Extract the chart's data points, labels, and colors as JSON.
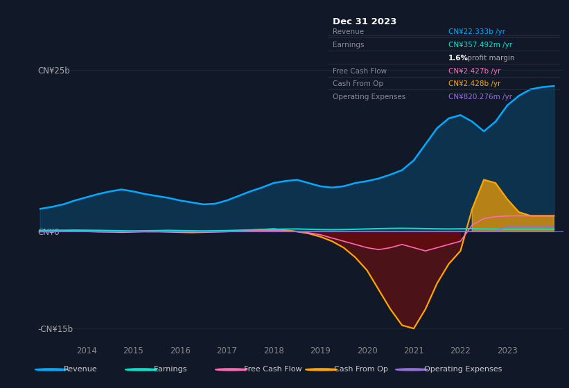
{
  "background_color": "#111827",
  "plot_bg_color": "#111827",
  "revenue_color": "#00aaff",
  "earnings_color": "#00e5cc",
  "fcf_color": "#ff69b4",
  "cashfromop_color": "#ffa500",
  "opex_color": "#9370db",
  "ylim": [
    -17,
    28
  ],
  "yticks": [
    -15,
    0,
    25
  ],
  "ytick_labels": [
    "-CN¥15b",
    "CN¥0",
    "CN¥25b"
  ],
  "xlabel_years": [
    2014,
    2015,
    2016,
    2017,
    2018,
    2019,
    2020,
    2021,
    2022,
    2023
  ],
  "grid_color": "#1e2a3a",
  "zero_line_color": "#555577",
  "legend_items": [
    {
      "label": "Revenue",
      "color": "#00aaff"
    },
    {
      "label": "Earnings",
      "color": "#00e5cc"
    },
    {
      "label": "Free Cash Flow",
      "color": "#ff69b4"
    },
    {
      "label": "Cash From Op",
      "color": "#ffa500"
    },
    {
      "label": "Operating Expenses",
      "color": "#9370db"
    }
  ],
  "info_box_title": "Dec 31 2023",
  "info_rows": [
    {
      "label": "Revenue",
      "value": "CN¥22.333b /yr",
      "value_color": "#00aaff"
    },
    {
      "label": "Earnings",
      "value": "CN¥357.492m /yr",
      "value_color": "#00e5cc"
    },
    {
      "label": "",
      "value": "1.6% profit margin",
      "value_color": "#dddddd"
    },
    {
      "label": "Free Cash Flow",
      "value": "CN¥2.427b /yr",
      "value_color": "#ff69b4"
    },
    {
      "label": "Cash From Op",
      "value": "CN¥2.428b /yr",
      "value_color": "#ffa500"
    },
    {
      "label": "Operating Expenses",
      "value": "CN¥820.276m /yr",
      "value_color": "#9370db"
    }
  ],
  "series_x": [
    2013.0,
    2013.25,
    2013.5,
    2013.75,
    2014.0,
    2014.25,
    2014.5,
    2014.75,
    2015.0,
    2015.25,
    2015.5,
    2015.75,
    2016.0,
    2016.25,
    2016.5,
    2016.75,
    2017.0,
    2017.25,
    2017.5,
    2017.75,
    2018.0,
    2018.25,
    2018.5,
    2018.75,
    2019.0,
    2019.25,
    2019.5,
    2019.75,
    2020.0,
    2020.25,
    2020.5,
    2020.75,
    2021.0,
    2021.25,
    2021.5,
    2021.75,
    2022.0,
    2022.25,
    2022.5,
    2022.75,
    2023.0,
    2023.25,
    2023.5,
    2023.75,
    2024.0
  ],
  "revenue": [
    3.5,
    3.8,
    4.2,
    4.8,
    5.3,
    5.8,
    6.2,
    6.5,
    6.2,
    5.8,
    5.5,
    5.2,
    4.8,
    4.5,
    4.2,
    4.3,
    4.8,
    5.5,
    6.2,
    6.8,
    7.5,
    7.8,
    8.0,
    7.5,
    7.0,
    6.8,
    7.0,
    7.5,
    7.8,
    8.2,
    8.8,
    9.5,
    11.0,
    13.5,
    16.0,
    17.5,
    18.0,
    17.0,
    15.5,
    17.0,
    19.5,
    21.0,
    22.0,
    22.333,
    22.5
  ],
  "earnings": [
    0.15,
    0.18,
    0.2,
    0.22,
    0.2,
    0.18,
    0.15,
    0.12,
    0.1,
    0.12,
    0.15,
    0.18,
    0.15,
    0.12,
    0.1,
    0.12,
    0.15,
    0.2,
    0.25,
    0.3,
    0.35,
    0.38,
    0.4,
    0.35,
    0.3,
    0.28,
    0.3,
    0.35,
    0.4,
    0.45,
    0.48,
    0.5,
    0.48,
    0.45,
    0.42,
    0.4,
    0.42,
    0.45,
    0.4,
    0.38,
    0.36,
    0.357,
    0.357,
    0.357,
    0.357
  ],
  "fcf": [
    0.05,
    0.05,
    0.05,
    0.02,
    0.0,
    -0.05,
    -0.05,
    0.0,
    0.05,
    0.08,
    0.05,
    0.02,
    0.0,
    -0.02,
    -0.05,
    -0.02,
    0.0,
    0.05,
    0.1,
    0.15,
    0.2,
    0.1,
    0.0,
    -0.2,
    -0.5,
    -1.0,
    -1.5,
    -2.0,
    -2.5,
    -2.8,
    -2.5,
    -2.0,
    -2.5,
    -3.0,
    -2.5,
    -2.0,
    -1.5,
    1.0,
    2.0,
    2.3,
    2.4,
    2.427,
    2.427,
    2.427,
    2.427
  ],
  "cashfromop": [
    0.0,
    0.0,
    0.05,
    0.1,
    0.05,
    0.0,
    -0.05,
    -0.1,
    -0.05,
    0.0,
    0.0,
    -0.05,
    -0.1,
    -0.15,
    -0.1,
    -0.05,
    0.0,
    0.1,
    0.2,
    0.3,
    0.4,
    0.2,
    0.0,
    -0.3,
    -0.8,
    -1.5,
    -2.5,
    -4.0,
    -6.0,
    -9.0,
    -12.0,
    -14.5,
    -15.0,
    -12.0,
    -8.0,
    -5.0,
    -3.0,
    3.5,
    8.0,
    7.5,
    5.0,
    3.0,
    2.428,
    2.428,
    2.428
  ],
  "opex": [
    0.0,
    0.0,
    0.0,
    0.0,
    0.0,
    0.0,
    0.0,
    0.0,
    0.0,
    0.0,
    0.0,
    0.0,
    0.0,
    0.0,
    0.0,
    0.0,
    0.0,
    0.0,
    0.0,
    0.0,
    0.0,
    0.0,
    0.0,
    0.0,
    0.0,
    0.0,
    0.0,
    0.0,
    0.0,
    0.0,
    0.0,
    0.0,
    0.0,
    0.0,
    0.0,
    0.0,
    0.0,
    0.0,
    0.0,
    0.0,
    0.82,
    0.82,
    0.82,
    0.82,
    0.82
  ]
}
